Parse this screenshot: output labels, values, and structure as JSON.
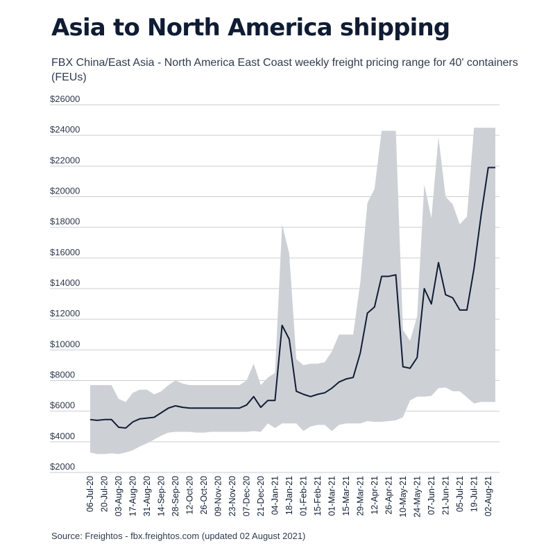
{
  "title": "Asia to North America shipping",
  "subtitle": "FBX China/East Asia - North America East Coast weekly freight pricing range for 40' containers (FEUs)",
  "source": "Source: Freightos - fbx.freightos.com (updated 02 August 2021)",
  "colors": {
    "band": "#cdd1d6",
    "line": "#0f1c33",
    "grid": "#c9cdd2",
    "text": "#2f3a4d"
  },
  "chart_data": {
    "type": "area",
    "y_tick_labels": [
      "$2000",
      "$4000",
      "$6000",
      "$8000",
      "$10000",
      "$12000",
      "$14000",
      "$16000",
      "$18000",
      "$20000",
      "$22000",
      "$24000",
      "$26000"
    ],
    "x_tick_labels": [
      "06-Jul-20",
      "20-Jul-20",
      "03-Aug-20",
      "17-Aug-20",
      "31-Aug-20",
      "14-Sep-20",
      "28-Sep-20",
      "12-Oct-20",
      "26-Oct-20",
      "09-Nov-20",
      "23-Nov-20",
      "07-Dec-20",
      "21-Dec-20",
      "04-Jan-21",
      "18-Jan-21",
      "01-Feb-21",
      "15-Feb-21",
      "01-Mar-21",
      "15-Mar-21",
      "29-Mar-21",
      "12-Apr-21",
      "26-Apr-21",
      "10-May-21",
      "24-May-21",
      "07-Jun-21",
      "21-Jun-21",
      "05-Jul-21",
      "19-Jul-21",
      "02-Aug-21"
    ],
    "ylim": [
      2000,
      26000
    ],
    "grid": true,
    "x_week_index": [
      0,
      1,
      2,
      3,
      4,
      5,
      6,
      7,
      8,
      9,
      10,
      11,
      12,
      13,
      14,
      15,
      16,
      17,
      18,
      19,
      20,
      21,
      22,
      23,
      24,
      25,
      26,
      27,
      28,
      29,
      30,
      31,
      32,
      33,
      34,
      35,
      36,
      37,
      38,
      39,
      40,
      41,
      42,
      43,
      44,
      45,
      46,
      47,
      48,
      49,
      50,
      51,
      52,
      53,
      54,
      55,
      56,
      57
    ],
    "series": [
      {
        "name": "",
        "role": "range-high",
        "values": [
          7700,
          7700,
          7700,
          7700,
          6800,
          6600,
          7200,
          7400,
          7400,
          7100,
          7300,
          7700,
          8000,
          7800,
          7700,
          7700,
          7700,
          7700,
          7700,
          7700,
          7700,
          7700,
          8000,
          9100,
          7700,
          8200,
          8500,
          18200,
          16300,
          9400,
          9000,
          9100,
          9100,
          9200,
          9900,
          11000,
          11000,
          11000,
          14400,
          19600,
          20500,
          24300,
          24300,
          24300,
          11300,
          10600,
          12200,
          20800,
          18600,
          23900,
          20000,
          19500,
          18200,
          18700,
          24500,
          24500,
          24500,
          24500
        ]
      },
      {
        "name": "",
        "role": "average",
        "values": [
          5450,
          5400,
          5450,
          5450,
          4950,
          4900,
          5300,
          5500,
          5550,
          5600,
          5900,
          6200,
          6350,
          6250,
          6200,
          6200,
          6200,
          6200,
          6200,
          6200,
          6200,
          6200,
          6400,
          6950,
          6250,
          6700,
          6700,
          11600,
          10700,
          7300,
          7100,
          6950,
          7100,
          7200,
          7500,
          7900,
          8100,
          8200,
          9800,
          12400,
          12800,
          14800,
          14800,
          14900,
          8900,
          8800,
          9500,
          14000,
          13000,
          15700,
          13600,
          13400,
          12600,
          12600,
          15300,
          18800,
          21900,
          21900
        ]
      },
      {
        "name": "",
        "role": "range-low",
        "values": [
          3300,
          3200,
          3200,
          3250,
          3200,
          3300,
          3450,
          3700,
          3900,
          4150,
          4400,
          4600,
          4650,
          4650,
          4650,
          4600,
          4600,
          4650,
          4650,
          4650,
          4650,
          4650,
          4650,
          4700,
          4650,
          5200,
          4900,
          5200,
          5200,
          5200,
          4700,
          5000,
          5100,
          5100,
          4700,
          5100,
          5200,
          5200,
          5200,
          5350,
          5300,
          5300,
          5350,
          5400,
          5600,
          6700,
          6950,
          6950,
          7000,
          7500,
          7550,
          7300,
          7300,
          6900,
          6500,
          6600,
          6600,
          6600
        ]
      }
    ]
  }
}
